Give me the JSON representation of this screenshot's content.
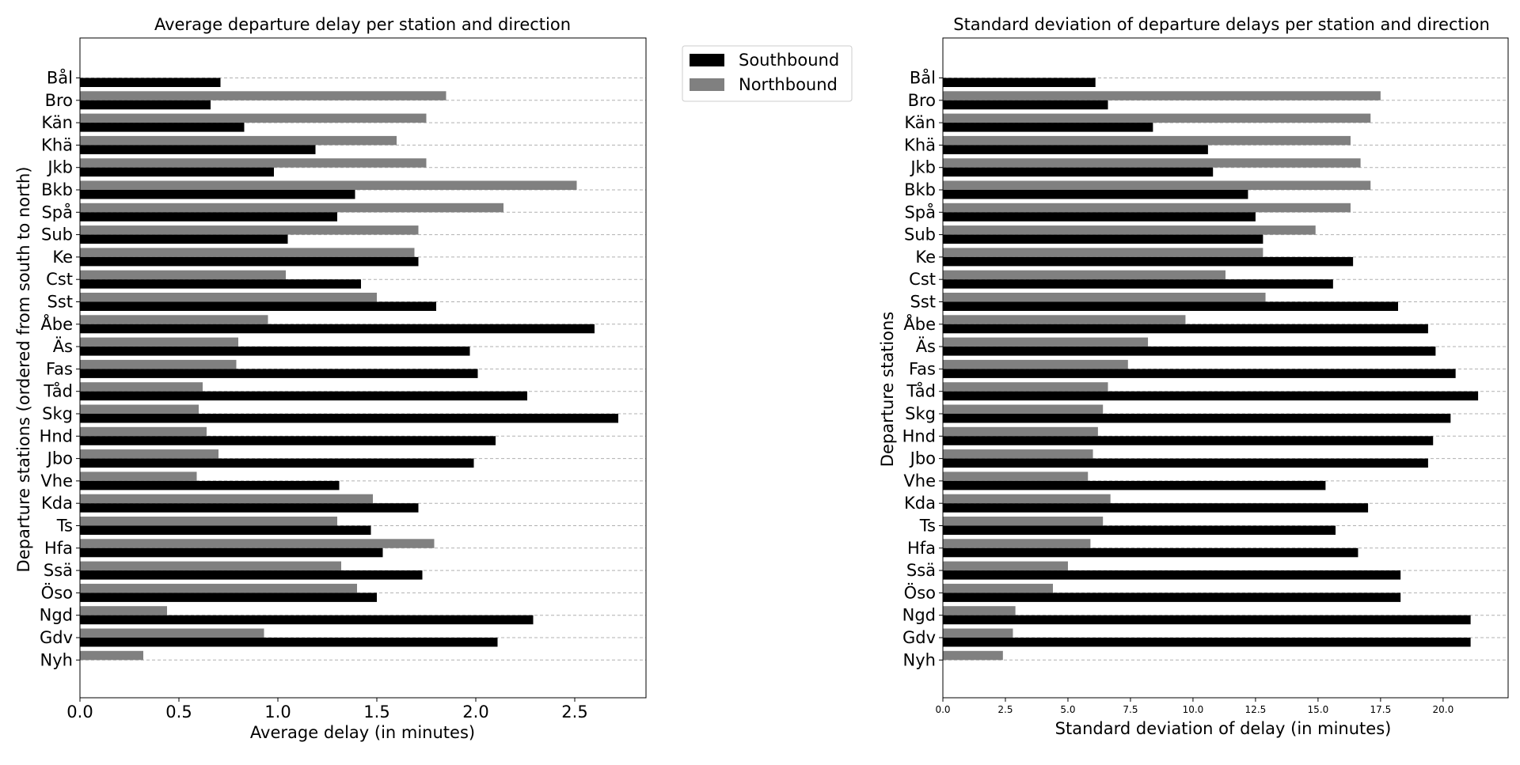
{
  "colors": {
    "southbound": "#000000",
    "northbound": "#808080",
    "grid": "#b0b0b0",
    "axis": "#000000"
  },
  "chart_data": [
    {
      "type": "bar",
      "orientation": "horizontal",
      "title": "Average departure delay per station and direction",
      "xlabel": "Average delay (in minutes)",
      "ylabel": "Departure stations (ordered from south to north)",
      "xlim": [
        0,
        2.86
      ],
      "xticks": [
        "0.0",
        "0.5",
        "1.0",
        "1.5",
        "2.0",
        "2.5"
      ],
      "grid": "horizontal dashed",
      "legend_position": "outside right",
      "categories": [
        "Bål",
        "Bro",
        "Kän",
        "Khä",
        "Jkb",
        "Bkb",
        "Spå",
        "Sub",
        "Ke",
        "Cst",
        "Sst",
        "Åbe",
        "Äs",
        "Fas",
        "Tåd",
        "Skg",
        "Hnd",
        "Jbo",
        "Vhe",
        "Kda",
        "Ts",
        "Hfa",
        "Ssä",
        "Öso",
        "Ngd",
        "Gdv",
        "Nyh"
      ],
      "series": [
        {
          "name": "Southbound",
          "values": [
            0.71,
            0.66,
            0.83,
            1.19,
            0.98,
            1.39,
            1.3,
            1.05,
            1.71,
            1.42,
            1.8,
            2.6,
            1.97,
            2.01,
            2.26,
            2.72,
            2.1,
            1.99,
            1.31,
            1.71,
            1.47,
            1.53,
            1.73,
            1.5,
            2.29,
            2.11,
            null
          ]
        },
        {
          "name": "Northbound",
          "values": [
            null,
            1.85,
            1.75,
            1.6,
            1.75,
            2.51,
            2.14,
            1.71,
            1.69,
            1.04,
            1.5,
            0.95,
            0.8,
            0.79,
            0.62,
            0.6,
            0.64,
            0.7,
            0.59,
            1.48,
            1.3,
            1.79,
            1.32,
            1.4,
            0.44,
            0.93,
            0.32
          ]
        }
      ]
    },
    {
      "type": "bar",
      "orientation": "horizontal",
      "title": "Standard deviation of departure delays per station and direction",
      "xlabel": "Standard deviation of delay (in minutes)",
      "ylabel": "Departure stations",
      "xlim": [
        0,
        22.6
      ],
      "xticks": [
        "0.0",
        "2.5",
        "5.0",
        "7.5",
        "10.0",
        "12.5",
        "15.0",
        "17.5",
        "20.0"
      ],
      "grid": "horizontal dashed",
      "categories": [
        "Bål",
        "Bro",
        "Kän",
        "Khä",
        "Jkb",
        "Bkb",
        "Spå",
        "Sub",
        "Ke",
        "Cst",
        "Sst",
        "Åbe",
        "Äs",
        "Fas",
        "Tåd",
        "Skg",
        "Hnd",
        "Jbo",
        "Vhe",
        "Kda",
        "Ts",
        "Hfa",
        "Ssä",
        "Öso",
        "Ngd",
        "Gdv",
        "Nyh"
      ],
      "series": [
        {
          "name": "Southbound",
          "values": [
            6.1,
            6.6,
            8.4,
            10.6,
            10.8,
            12.2,
            12.5,
            12.8,
            16.4,
            15.6,
            18.2,
            19.4,
            19.7,
            20.5,
            21.4,
            20.3,
            19.6,
            19.4,
            15.3,
            17.0,
            15.7,
            16.6,
            18.3,
            18.3,
            21.1,
            21.1,
            null
          ]
        },
        {
          "name": "Northbound",
          "values": [
            null,
            17.5,
            17.1,
            16.3,
            16.7,
            17.1,
            16.3,
            14.9,
            12.8,
            11.3,
            12.9,
            9.7,
            8.2,
            7.4,
            6.6,
            6.4,
            6.2,
            6.0,
            5.8,
            6.7,
            6.4,
            5.9,
            5.0,
            4.4,
            2.9,
            2.8,
            2.4
          ]
        }
      ]
    }
  ]
}
